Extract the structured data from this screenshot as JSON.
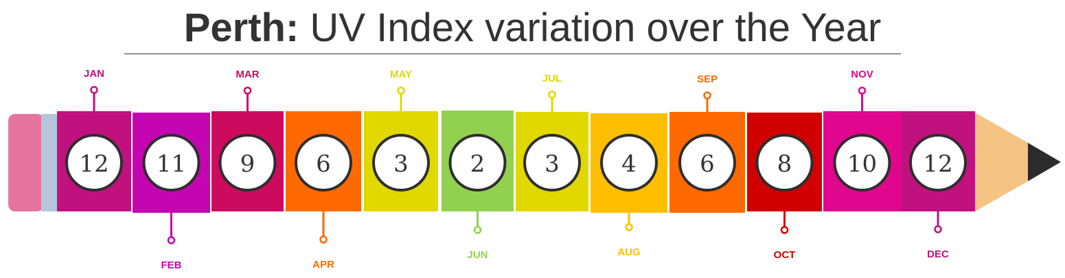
{
  "title": {
    "city": "Perth:",
    "rest": "UV Index variation over the Year"
  },
  "chart_data": {
    "type": "bar",
    "title": "Perth: UV Index variation over the Year",
    "categories": [
      "JAN",
      "FEB",
      "MAR",
      "APR",
      "MAY",
      "JUN",
      "JUL",
      "AUG",
      "SEP",
      "OCT",
      "NOV",
      "DEC"
    ],
    "values": [
      12,
      11,
      9,
      6,
      3,
      2,
      3,
      4,
      6,
      8,
      10,
      12
    ],
    "colors": [
      "#c0117f",
      "#c306b2",
      "#cc0a5e",
      "#ff6a00",
      "#e1d800",
      "#92d14f",
      "#e1d800",
      "#ffbf00",
      "#ff6a00",
      "#d10000",
      "#e0078e",
      "#c0117f"
    ],
    "label_colors": [
      "#c0117f",
      "#c306b2",
      "#cc0a5e",
      "#ff6a00",
      "#e1d800",
      "#92d14f",
      "#e1d800",
      "#ffbf00",
      "#ff6a00",
      "#d10000",
      "#e0078e",
      "#c0117f"
    ],
    "label_positions": [
      "top",
      "bottom",
      "top",
      "bottom",
      "top",
      "bottom",
      "top",
      "bottom",
      "top",
      "bottom",
      "top",
      "bottom"
    ]
  }
}
